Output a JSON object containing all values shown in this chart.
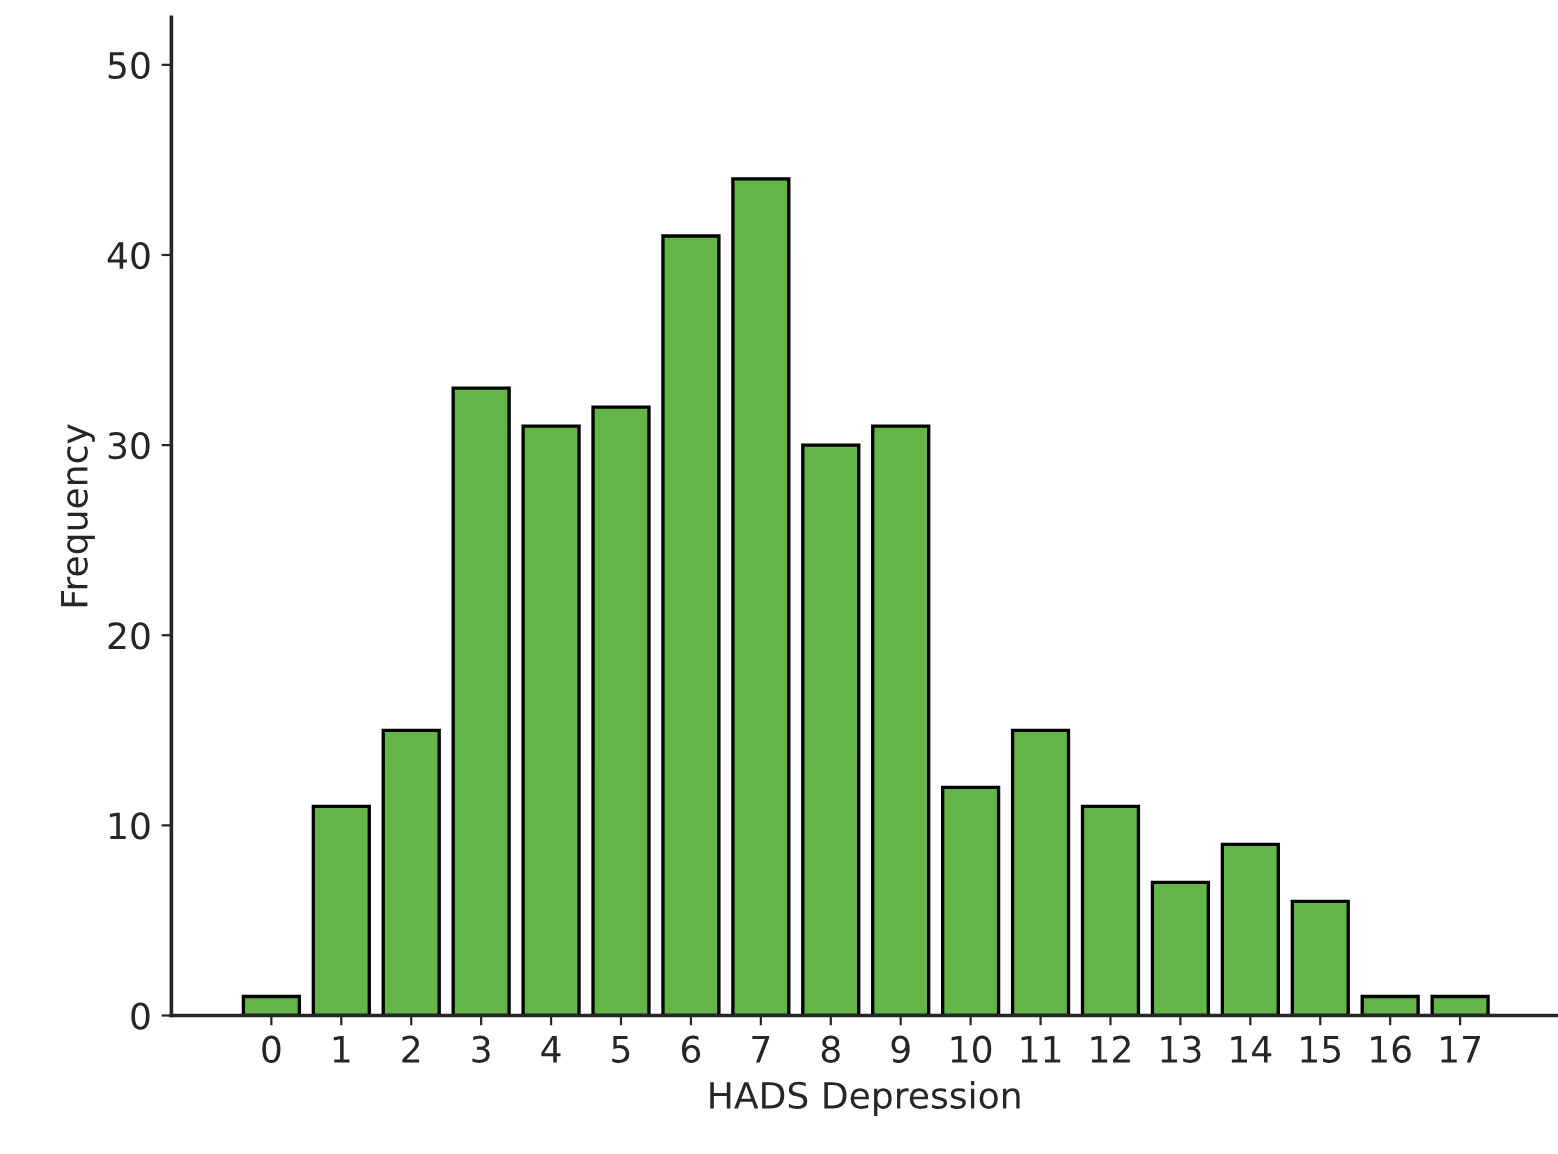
{
  "chart_data": {
    "type": "bar",
    "xlabel": "HADS Depression",
    "ylabel": "Frequency",
    "categories": [
      "0",
      "1",
      "2",
      "3",
      "4",
      "5",
      "6",
      "7",
      "8",
      "9",
      "10",
      "11",
      "12",
      "13",
      "14",
      "15",
      "16",
      "17"
    ],
    "values": [
      1,
      11,
      15,
      33,
      31,
      32,
      41,
      44,
      30,
      31,
      12,
      15,
      11,
      7,
      9,
      6,
      1,
      1
    ],
    "color": "#62b546",
    "ylim": [
      0,
      52.5
    ],
    "yticks": [
      0,
      10,
      20,
      30,
      40,
      50
    ],
    "grid": false
  }
}
